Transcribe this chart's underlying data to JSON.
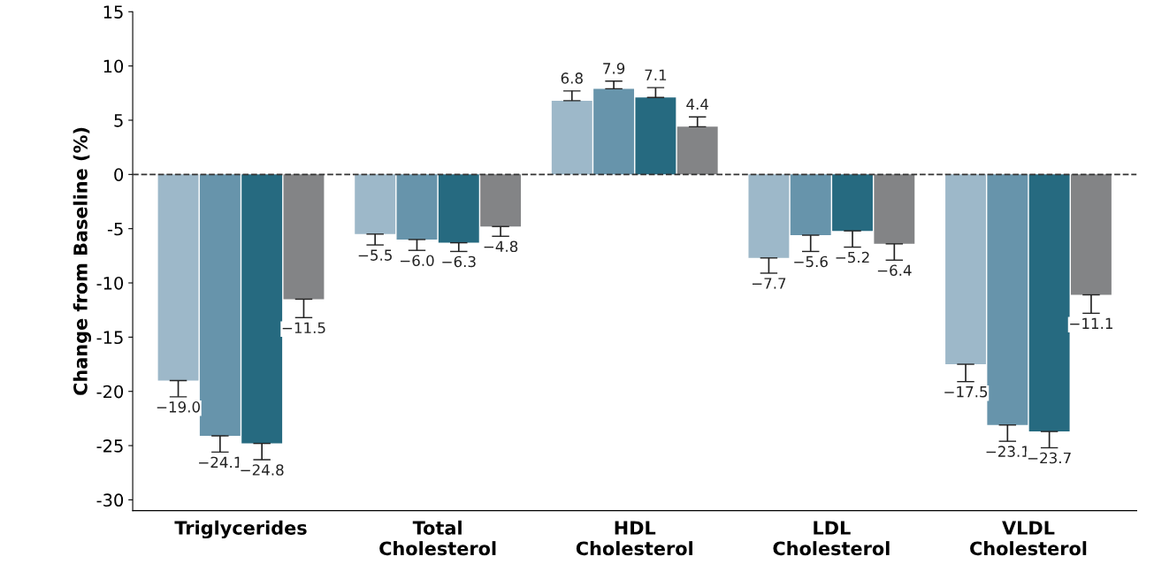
{
  "chart_data": {
    "type": "bar",
    "ylabel": "Change from Baseline (%)",
    "categories": [
      "Triglycerides",
      "Total\nCholesterol",
      "HDL\nCholesterol",
      "LDL\nCholesterol",
      "VLDL\nCholesterol"
    ],
    "series": [
      {
        "color": "#9db8c9",
        "values": [
          -19.0,
          -5.5,
          6.8,
          -7.7,
          -17.5
        ],
        "value_labels": [
          "−19.0",
          "−5.5",
          "6.8",
          "−7.7",
          "−17.5"
        ],
        "errors": [
          [
            -20.5,
            -19.0
          ],
          [
            -6.5,
            -5.5
          ],
          [
            6.8,
            7.7
          ],
          [
            -9.1,
            -7.7
          ],
          [
            -19.1,
            -17.5
          ]
        ]
      },
      {
        "color": "#6794ab",
        "values": [
          -24.1,
          -6.0,
          7.9,
          -5.6,
          -23.1
        ],
        "value_labels": [
          "−24.1",
          "−6.0",
          "7.9",
          "−5.6",
          "−23.1"
        ],
        "errors": [
          [
            -25.6,
            -24.1
          ],
          [
            -7.0,
            -6.0
          ],
          [
            7.9,
            8.6
          ],
          [
            -7.1,
            -5.6
          ],
          [
            -24.6,
            -23.1
          ]
        ]
      },
      {
        "color": "#266a80",
        "values": [
          -24.8,
          -6.3,
          7.1,
          -5.2,
          -23.7
        ],
        "value_labels": [
          "−24.8",
          "−6.3",
          "7.1",
          "−5.2",
          "−23.7"
        ],
        "errors": [
          [
            -26.3,
            -24.8
          ],
          [
            -7.1,
            -6.3
          ],
          [
            7.1,
            8.0
          ],
          [
            -6.7,
            -5.2
          ],
          [
            -25.2,
            -23.7
          ]
        ]
      },
      {
        "color": "#838486",
        "values": [
          -11.5,
          -4.8,
          4.4,
          -6.4,
          -11.1
        ],
        "value_labels": [
          "−11.5",
          "−4.8",
          "4.4",
          "−6.4",
          "−11.1"
        ],
        "errors": [
          [
            -13.2,
            -11.5
          ],
          [
            -5.7,
            -4.8
          ],
          [
            4.4,
            5.3
          ],
          [
            -7.9,
            -6.4
          ],
          [
            -12.8,
            -11.1
          ]
        ]
      }
    ],
    "ylim": [
      -31,
      15
    ],
    "yticks": [
      -30,
      -25,
      -20,
      -15,
      -10,
      -5,
      0,
      5,
      10,
      15
    ],
    "ref_lines": [
      {
        "axis": "y",
        "value": 0,
        "line_style": "dashed",
        "color": "#333333"
      }
    ],
    "grid": false,
    "legend": false
  }
}
